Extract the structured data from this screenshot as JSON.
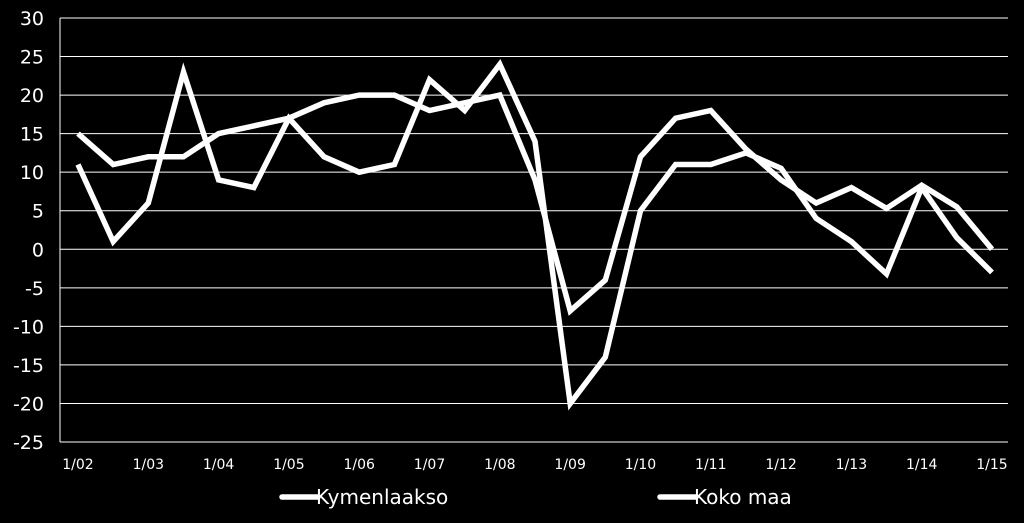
{
  "chart_data": {
    "type": "line",
    "title": "",
    "xlabel": "",
    "ylabel": "",
    "ylim": [
      -25,
      30
    ],
    "y_ticks": [
      "30",
      "25",
      "20",
      "15",
      "10",
      "5",
      "0",
      "-5",
      "-10",
      "-15",
      "-20",
      "-25"
    ],
    "x_tick_labels": [
      "1/02",
      "1/03",
      "1/04",
      "1/05",
      "1/06",
      "1/07",
      "1/08",
      "1/09",
      "1/10",
      "1/11",
      "1/12",
      "1/13",
      "1/14",
      "1/15"
    ],
    "x": [
      "1/02",
      "7/02",
      "1/03",
      "7/03",
      "1/04",
      "7/04",
      "1/05",
      "7/05",
      "1/06",
      "7/06",
      "1/07",
      "7/07",
      "1/08",
      "7/08",
      "1/09",
      "7/09",
      "1/10",
      "7/10",
      "1/11",
      "7/11",
      "1/12",
      "7/12",
      "1/13",
      "7/13",
      "1/14",
      "7/14",
      "1/15"
    ],
    "grid": true,
    "legend_position": "bottom",
    "line_color": "#ffffff",
    "grid_color": "#ffffff",
    "background_color": "#000000",
    "series": [
      {
        "name": "Kymenlaakso",
        "values": [
          11,
          1,
          6,
          23,
          9,
          8,
          17,
          12,
          10,
          11,
          22,
          18,
          24,
          14,
          -20,
          -14,
          5,
          11,
          11,
          12.5,
          10.5,
          4,
          1,
          -3.2,
          8,
          1.5,
          -3
        ]
      },
      {
        "name": "Koko maa",
        "values": [
          15,
          11,
          12,
          12,
          15,
          16,
          17,
          19,
          20,
          20,
          18,
          19,
          20,
          9,
          -8,
          -4,
          12,
          17,
          18,
          13,
          9,
          6,
          8,
          5.3,
          8.3,
          5.5,
          0
        ]
      }
    ]
  }
}
